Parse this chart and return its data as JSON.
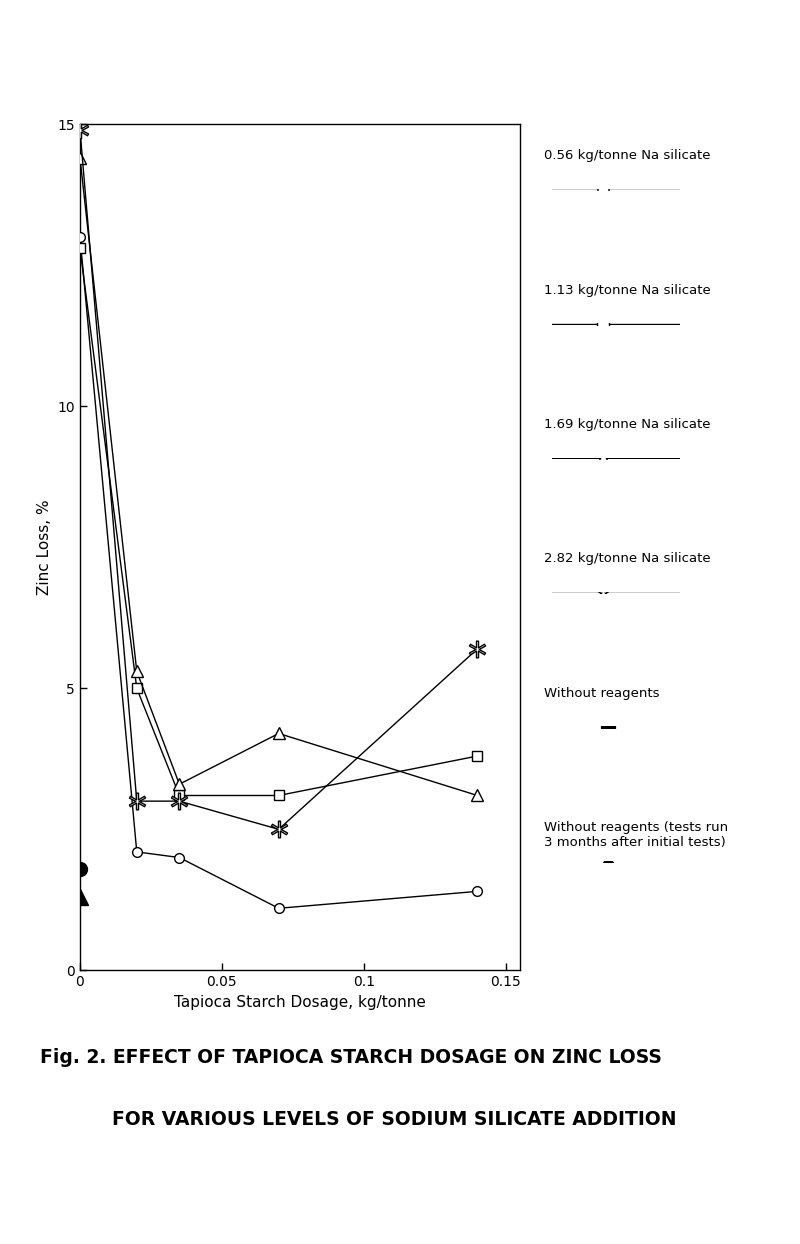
{
  "series": [
    {
      "label": "0.56 kg/tonne Na silicate",
      "x": [
        0.0,
        0.02,
        0.035,
        0.07,
        0.14
      ],
      "y": [
        13.0,
        2.1,
        2.0,
        1.1,
        1.4
      ],
      "marker": "o",
      "marker_filled": false,
      "linestyle": "-",
      "color": "black"
    },
    {
      "label": "1.13 kg/tonne Na silicate",
      "x": [
        0.0,
        0.02,
        0.035,
        0.07,
        0.14
      ],
      "y": [
        12.8,
        5.0,
        3.1,
        3.1,
        3.8
      ],
      "marker": "s",
      "marker_filled": false,
      "linestyle": "-",
      "color": "black"
    },
    {
      "label": "1.69 kg/tonne Na silicate",
      "x": [
        0.0,
        0.02,
        0.035,
        0.07,
        0.14
      ],
      "y": [
        14.4,
        5.3,
        3.3,
        4.2,
        3.1
      ],
      "marker": "^",
      "marker_filled": false,
      "linestyle": "-",
      "color": "black"
    },
    {
      "label": "2.82 kg/tonne Na silicate",
      "x": [
        0.0,
        0.02,
        0.035,
        0.07,
        0.14
      ],
      "y": [
        14.9,
        3.0,
        3.0,
        2.5,
        5.7
      ],
      "marker": "$*$",
      "marker_filled": false,
      "linestyle": "-",
      "color": "black"
    },
    {
      "label": "Without reagents",
      "x": [
        0.0
      ],
      "y": [
        1.8
      ],
      "marker": "o",
      "marker_filled": true,
      "linestyle": "none",
      "color": "black"
    },
    {
      "label": "Without reagents (tests run\n3 months after initial tests)",
      "x": [
        0.0
      ],
      "y": [
        1.3
      ],
      "marker": "^",
      "marker_filled": true,
      "linestyle": "none",
      "color": "black"
    }
  ],
  "xlabel": "Tapioca Starch Dosage, kg/tonne",
  "ylabel": "Zinc Loss, %",
  "xlim": [
    0,
    0.155
  ],
  "ylim": [
    0,
    15
  ],
  "xticks": [
    0,
    0.05,
    0.1,
    0.15
  ],
  "yticks": [
    0,
    5,
    10,
    15
  ],
  "figure_title_line1": "Fig. 2. EFFECT OF TAPIOCA STARCH DOSAGE ON ZINC LOSS",
  "figure_title_line2": "FOR VARIOUS LEVELS OF SODIUM SILICATE ADDITION",
  "background_color": "#ffffff",
  "legend_labels": [
    "0.56 kg/tonne Na silicate",
    "1.13 kg/tonne Na silicate",
    "1.69 kg/tonne Na silicate",
    "2.82 kg/tonne Na silicate",
    "Without reagents",
    "Without reagents (tests run\n3 months after initial tests)"
  ]
}
